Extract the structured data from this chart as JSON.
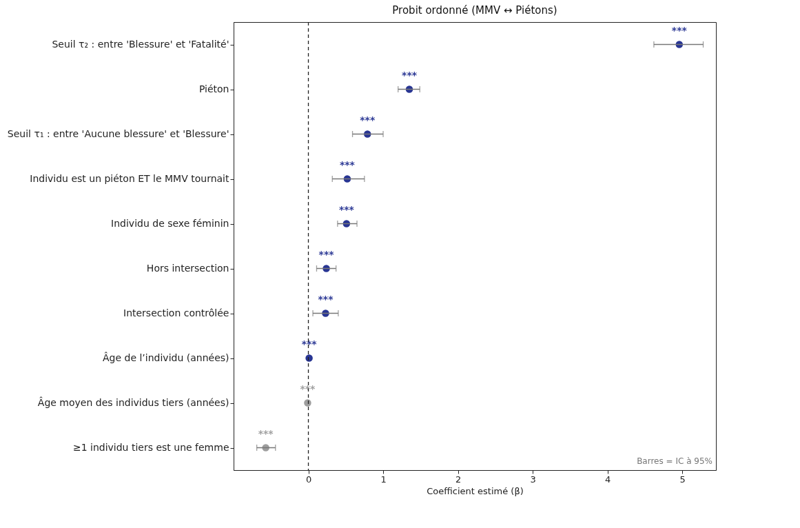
{
  "chart_data": {
    "type": "scatter",
    "orientation": "horizontal",
    "title": "Probit ordonné (MMV ↔ Piétons)",
    "xlabel": "Coefficient estimé (β)",
    "categories": [
      "Seuil τ₂ : entre 'Blessure' et 'Fatalité'",
      "Piéton",
      "Seuil τ₁ : entre 'Aucune blessure' et 'Blessure'",
      "Individu est un piéton ET le MMV tournait",
      "Individu de sexe féminin",
      "Hors intersection",
      "Intersection contrôlée",
      "Âge de l’individu (années)",
      "Âge moyen des individus tiers (années)",
      "≥1 individu tiers est une femme"
    ],
    "values": [
      4.96,
      1.35,
      0.79,
      0.52,
      0.51,
      0.24,
      0.23,
      0.01,
      -0.01,
      -0.57
    ],
    "errors": [
      [
        4.62,
        5.28
      ],
      [
        1.2,
        1.49
      ],
      [
        0.59,
        1.0
      ],
      [
        0.32,
        0.75
      ],
      [
        0.39,
        0.65
      ],
      [
        0.11,
        0.37
      ],
      [
        0.06,
        0.4
      ],
      null,
      null,
      [
        -0.69,
        -0.44
      ]
    ],
    "colors": [
      "#283593",
      "#283593",
      "#283593",
      "#283593",
      "#283593",
      "#283593",
      "#283593",
      "#283593",
      "#9e9e9e",
      "#9e9e9e"
    ],
    "marker": "circle",
    "grid": false,
    "xlim": [
      -1,
      5.45
    ],
    "xticks": [
      0,
      1,
      2,
      3,
      4,
      5
    ],
    "ref_lines": [
      {
        "axis": "x",
        "value": 0,
        "line_style": "dashed",
        "color": "#222222"
      }
    ],
    "annotations": [
      {
        "text": "***",
        "x": 4.96,
        "y": "Seuil τ₂ : entre 'Blessure' et 'Fatalité'"
      },
      {
        "text": "***",
        "x": 1.35,
        "y": "Piéton"
      },
      {
        "text": "***",
        "x": 0.79,
        "y": "Seuil τ₁ : entre 'Aucune blessure' et 'Blessure'"
      },
      {
        "text": "***",
        "x": 0.52,
        "y": "Individu est un piéton ET le MMV tournait"
      },
      {
        "text": "***",
        "x": 0.51,
        "y": "Individu de sexe féminin"
      },
      {
        "text": "***",
        "x": 0.24,
        "y": "Hors intersection"
      },
      {
        "text": "***",
        "x": 0.23,
        "y": "Intersection contrôlée"
      },
      {
        "text": "***",
        "x": 0.01,
        "y": "Âge de l’individu (années)"
      },
      {
        "text": "***",
        "x": -0.01,
        "y": "Âge moyen des individus tiers (années)"
      },
      {
        "text": "***",
        "x": -0.57,
        "y": "≥1 individu tiers est une femme"
      },
      "Barres = IC à 95%"
    ]
  }
}
